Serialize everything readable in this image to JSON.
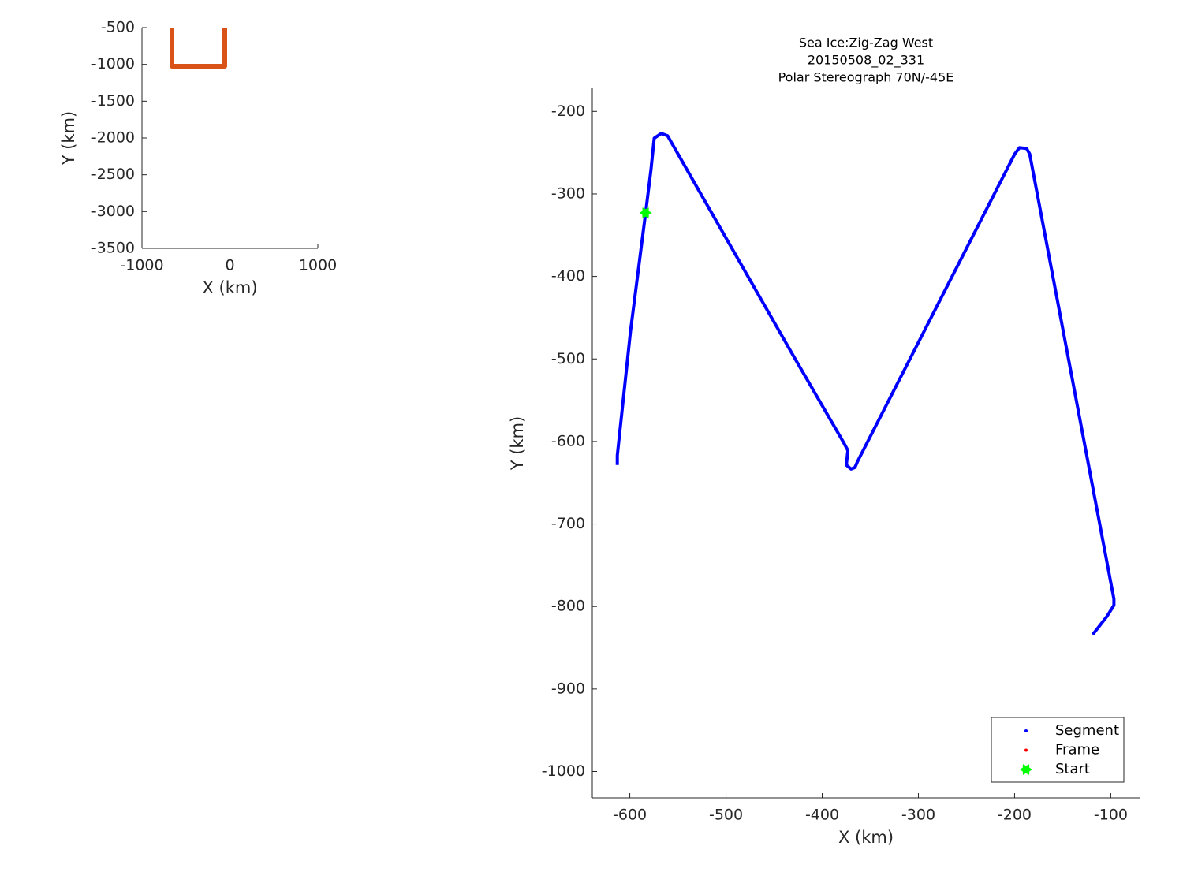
{
  "chart_data": [
    {
      "type": "line",
      "xlabel": "X (km)",
      "ylabel": "Y (km)",
      "xlim": [
        -1000,
        1000
      ],
      "ylim": [
        -3500,
        -500
      ],
      "xticks": [
        -1000,
        0,
        1000
      ],
      "yticks": [
        -3500,
        -3000,
        -2500,
        -2000,
        -1500,
        -1000,
        -500
      ],
      "series": [
        {
          "color": "#d95319",
          "x": [
            -659,
            -659,
            -58,
            -58
          ],
          "y": [
            -500,
            -1025,
            -1025,
            -500
          ]
        }
      ]
    },
    {
      "type": "line",
      "title": [
        "Sea Ice:Zig-Zag West",
        "20150508_02_331",
        "Polar Stereograph 70N/-45E"
      ],
      "xlabel": "X (km)",
      "ylabel": "Y (km)",
      "xlim": [
        -639,
        -70
      ],
      "ylim": [
        -1032,
        -172
      ],
      "xticks": [
        -600,
        -500,
        -400,
        -300,
        -200,
        -100
      ],
      "yticks": [
        -1000,
        -900,
        -800,
        -700,
        -600,
        -500,
        -400,
        -300,
        -200
      ],
      "legend": "lower right",
      "series": [
        {
          "name": "Segment",
          "color": "#0000ff",
          "marker": "dot",
          "x": [
            -613,
            -613,
            -599.2,
            -583.6,
            -578,
            -574.6,
            -567.3,
            -560.7,
            -430.6,
            -377.4,
            -373.3,
            -374.9,
            -370,
            -366,
            -363.5,
            -199.8,
            -194.9,
            -187.6,
            -184.3,
            -96.7,
            -96.7,
            -104,
            -118.8
          ],
          "y": [
            -628.6,
            -617,
            -466,
            -323,
            -270.6,
            -232.5,
            -226.7,
            -229.6,
            -495,
            -602,
            -611,
            -628.6,
            -633.4,
            -631.5,
            -624.8,
            -251.5,
            -244,
            -244.9,
            -251.5,
            -791,
            -798.6,
            -812,
            -834
          ]
        },
        {
          "name": "Frame",
          "color": "#ff0000",
          "marker": "dot",
          "x": [],
          "y": []
        },
        {
          "name": "Start",
          "color": "#00ff00",
          "marker": "star",
          "x": [
            -583.6
          ],
          "y": [
            -323
          ]
        }
      ]
    }
  ]
}
